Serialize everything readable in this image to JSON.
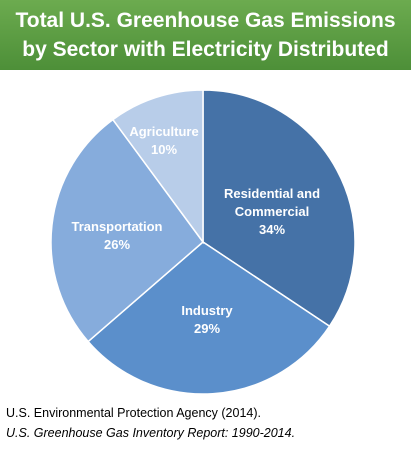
{
  "header": {
    "title_line1": "Total U.S. Greenhouse Gas Emissions",
    "title_line2": "by Sector with Electricity Distributed"
  },
  "chart_data": {
    "type": "pie",
    "title": "Total U.S. Greenhouse Gas Emissions by Sector with Electricity Distributed",
    "start_angle_deg": 0,
    "slices": [
      {
        "name_lines": [
          "Residential and",
          "Commercial"
        ],
        "value": 34,
        "label": "34%",
        "color": "#4572a7"
      },
      {
        "name_lines": [
          "Industry"
        ],
        "value": 29,
        "label": "29%",
        "color": "#5b8fcb"
      },
      {
        "name_lines": [
          "Transportation"
        ],
        "value": 26,
        "label": "26%",
        "color": "#86acdc"
      },
      {
        "name_lines": [
          "Agriculture"
        ],
        "value": 10,
        "label": "10%",
        "color": "#b8cde9"
      }
    ]
  },
  "source": {
    "agency": "U.S. Environmental Protection Agency (2014).",
    "report": "U.S. Greenhouse Gas Inventory Report: 1990-2014."
  }
}
